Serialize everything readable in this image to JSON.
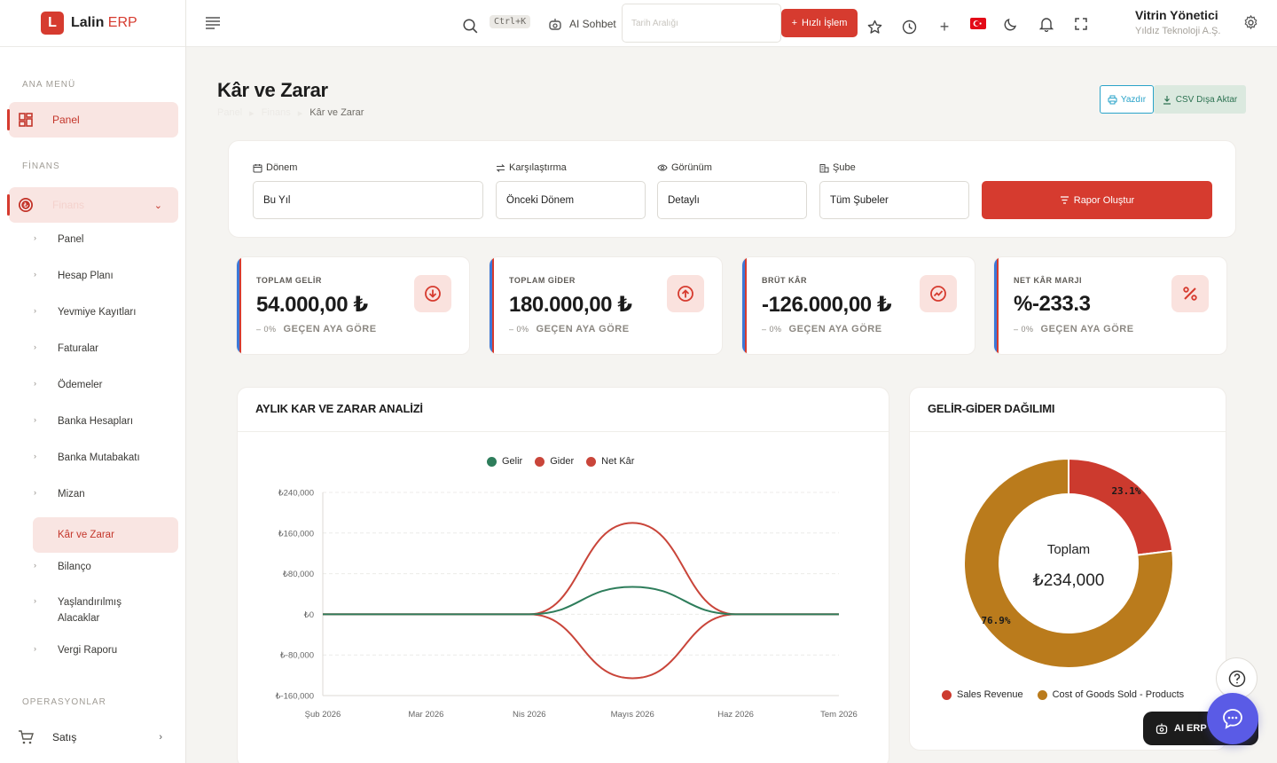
{
  "brand": {
    "letter": "L",
    "name": "Lalin",
    "suffix": "ERP"
  },
  "sidebar": {
    "section_main": "ANA MENÜ",
    "panel_label": "Panel",
    "section_finance": "FİNANS",
    "finance_label": "Finans",
    "sub_items": [
      "Panel",
      "Hesap Planı",
      "Yevmiye Kayıtları",
      "Faturalar",
      "Ödemeler",
      "Banka Hesapları",
      "Banka Mutabakatı",
      "Mizan",
      "Kâr ve Zarar",
      "Bilanço",
      "Yaşlandırılmış Alacaklar",
      "Vergi Raporu"
    ],
    "section_ops": "OPERASYONLAR",
    "sales_label": "Satış"
  },
  "topbar": {
    "shortcut": "Ctrl+K",
    "ai_chat": "AI Sohbet",
    "date_placeholder": "Tarih Aralığı",
    "quick_action": "Hızlı İşlem",
    "user_name": "Vitrin Yönetici",
    "user_org": "Yıldız Teknoloji A.Ş."
  },
  "page": {
    "title": "Kâr ve Zarar",
    "breadcrumb": [
      "Panel",
      "Finans",
      "Kâr ve Zarar"
    ],
    "print_label": "Yazdır",
    "csv_label": "CSV Dışa Aktar"
  },
  "filters": {
    "period_label": "Dönem",
    "period_value": "Bu Yıl",
    "compare_label": "Karşılaştırma",
    "compare_value": "Önceki Dönem",
    "view_label": "Görünüm",
    "view_value": "Detaylı",
    "branch_label": "Şube",
    "branch_value": "Tüm Şubeler",
    "report_button": "Rapor Oluştur"
  },
  "stats": [
    {
      "label": "TOPLAM GELİR",
      "value": "54.000,00 ₺",
      "change": "0%",
      "change_text": "GEÇEN AYA GÖRE",
      "icon": "arrow-down-circle-icon"
    },
    {
      "label": "TOPLAM GİDER",
      "value": "180.000,00 ₺",
      "change": "0%",
      "change_text": "GEÇEN AYA GÖRE",
      "icon": "arrow-up-circle-icon"
    },
    {
      "label": "BRÜT KÂR",
      "value": "-126.000,00 ₺",
      "change": "0%",
      "change_text": "GEÇEN AYA GÖRE",
      "icon": "trend-icon"
    },
    {
      "label": "NET KÂR MARJI",
      "value": "%-233.3",
      "change": "0%",
      "change_text": "GEÇEN AYA GÖRE",
      "icon": "percent-icon"
    }
  ],
  "line_card": {
    "title": "AYLIK KAR VE ZARAR ANALİZİ"
  },
  "donut_card": {
    "title": "GELİR-GİDER DAĞILIMI",
    "center_label": "Toplam",
    "center_value": "₺234,000"
  },
  "chart_data": [
    {
      "type": "line",
      "categories": [
        "Şub 2026",
        "Mar 2026",
        "Nis 2026",
        "Mayıs 2026",
        "Haz 2026",
        "Tem 2026"
      ],
      "series": [
        {
          "name": "Gelir",
          "color": "#2e7d5b",
          "values": [
            0,
            0,
            0,
            54000,
            0,
            0
          ]
        },
        {
          "name": "Gider",
          "color": "#c9453a",
          "values": [
            0,
            0,
            0,
            180000,
            0,
            0
          ]
        },
        {
          "name": "Net Kâr",
          "color": "#c9453a",
          "values": [
            0,
            0,
            0,
            -126000,
            0,
            0
          ]
        }
      ],
      "y_ticks": [
        "₺240,000",
        "₺160,000",
        "₺80,000",
        "₺0",
        "₺-80,000",
        "₺-160,000"
      ],
      "ylim": [
        -160000,
        240000
      ],
      "legend": "top-center",
      "grid": true
    },
    {
      "type": "pie",
      "labels": [
        "Sales Revenue",
        "Cost of Goods Sold - Products"
      ],
      "values": [
        54000,
        180000
      ],
      "percent_labels": [
        "23.1%",
        "76.9%"
      ],
      "colors": [
        "#cc3a2e",
        "#ba7b1c"
      ],
      "legend": "bottom"
    }
  ],
  "fab": {
    "ai_erp": "AI ERP"
  }
}
